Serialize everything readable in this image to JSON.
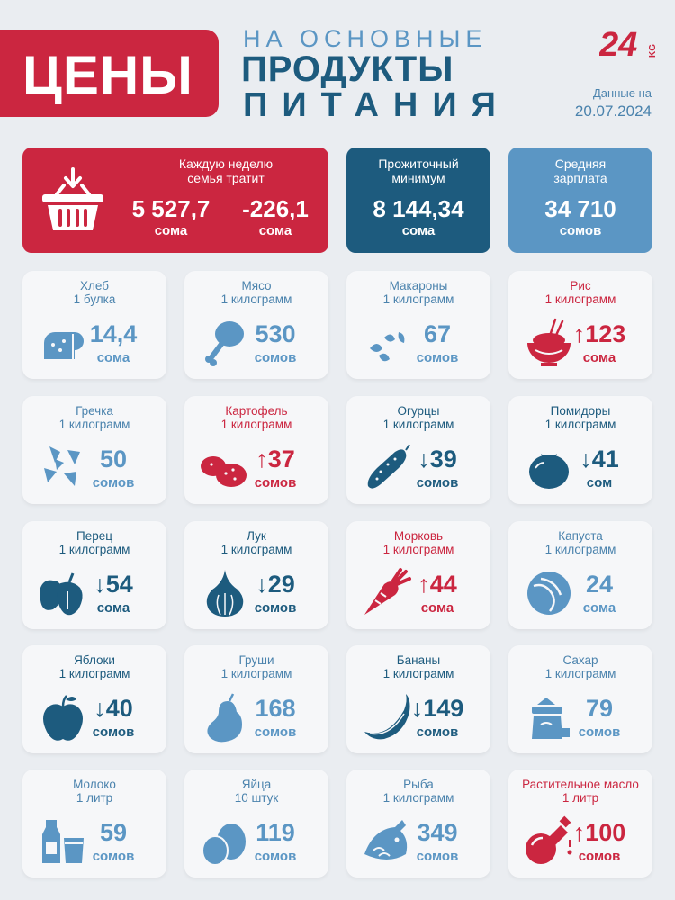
{
  "header": {
    "title": "ЦЕНЫ",
    "subtitle_1": "НА ОСНОВНЫЕ",
    "subtitle_2": "ПРОДУКТЫ",
    "subtitle_3": "ПИТАНИЯ",
    "logo_text": "24",
    "logo_suffix": "KG",
    "date_label": "Данные на",
    "date_value": "20.07.2024"
  },
  "colors": {
    "red": "#cb2640",
    "navy": "#1d5b7e",
    "blue": "#5b96c4",
    "background": "#eaedf1"
  },
  "stats": {
    "weekly": {
      "label_1": "Каждую неделю",
      "label_2": "семья тратит",
      "value": "5 527,7",
      "value_unit": "сома",
      "change": "-226,1",
      "change_unit": "сома",
      "icon": "basket-icon"
    },
    "minimum": {
      "label_1": "Прожиточный",
      "label_2": "минимум",
      "value": "8 144,34",
      "unit": "сома"
    },
    "salary": {
      "label_1": "Средняя",
      "label_2": "зарплата",
      "value": "34 710",
      "unit": "сомов"
    }
  },
  "products": [
    {
      "name": "Хлеб",
      "qty": "1 булка",
      "price": "14,4",
      "currency": "сома",
      "trend": "none",
      "icon": "bread-icon"
    },
    {
      "name": "Мясо",
      "qty": "1 килограмм",
      "price": "530",
      "currency": "сомов",
      "trend": "none",
      "icon": "meat-icon"
    },
    {
      "name": "Макароны",
      "qty": "1 килограмм",
      "price": "67",
      "currency": "сомов",
      "trend": "none",
      "icon": "pasta-icon"
    },
    {
      "name": "Рис",
      "qty": "1 килограмм",
      "price": "↑123",
      "currency": "сома",
      "trend": "up",
      "icon": "rice-icon"
    },
    {
      "name": "Гречка",
      "qty": "1 килограмм",
      "price": "50",
      "currency": "сомов",
      "trend": "none",
      "icon": "buckwheat-icon"
    },
    {
      "name": "Картофель",
      "qty": "1 килограмм",
      "price": "↑37",
      "currency": "сомов",
      "trend": "up",
      "icon": "potato-icon"
    },
    {
      "name": "Огурцы",
      "qty": "1 килограмм",
      "price": "↓39",
      "currency": "сомов",
      "trend": "down",
      "icon": "cucumber-icon"
    },
    {
      "name": "Помидоры",
      "qty": "1 килограмм",
      "price": "↓41",
      "currency": "сом",
      "trend": "down",
      "icon": "tomato-icon"
    },
    {
      "name": "Перец",
      "qty": "1 килограмм",
      "price": "↓54",
      "currency": "сома",
      "trend": "down",
      "icon": "pepper-icon"
    },
    {
      "name": "Лук",
      "qty": "1 килограмм",
      "price": "↓29",
      "currency": "сомов",
      "trend": "down",
      "icon": "onion-icon"
    },
    {
      "name": "Морковь",
      "qty": "1 килограмм",
      "price": "↑44",
      "currency": "сома",
      "trend": "up",
      "icon": "carrot-icon"
    },
    {
      "name": "Капуста",
      "qty": "1 килограмм",
      "price": "24",
      "currency": "сома",
      "trend": "none",
      "icon": "cabbage-icon"
    },
    {
      "name": "Яблоки",
      "qty": "1 килограмм",
      "price": "↓40",
      "currency": "сомов",
      "trend": "down",
      "icon": "apple-icon"
    },
    {
      "name": "Груши",
      "qty": "1 килограмм",
      "price": "168",
      "currency": "сомов",
      "trend": "none",
      "icon": "pear-icon"
    },
    {
      "name": "Бананы",
      "qty": "1 килограмм",
      "price": "↓149",
      "currency": "сомов",
      "trend": "down",
      "icon": "banana-icon"
    },
    {
      "name": "Сахар",
      "qty": "1 килограмм",
      "price": "79",
      "currency": "сомов",
      "trend": "none",
      "icon": "sugar-icon"
    },
    {
      "name": "Молоко",
      "qty": "1 литр",
      "price": "59",
      "currency": "сомов",
      "trend": "none",
      "icon": "milk-icon"
    },
    {
      "name": "Яйца",
      "qty": "10 штук",
      "price": "119",
      "currency": "сомов",
      "trend": "none",
      "icon": "eggs-icon"
    },
    {
      "name": "Рыба",
      "qty": "1 килограмм",
      "price": "349",
      "currency": "сомов",
      "trend": "none",
      "icon": "fish-icon"
    },
    {
      "name": "Растительное масло",
      "qty": "1 литр",
      "price": "↑100",
      "currency": "сомов",
      "trend": "up",
      "icon": "oil-icon"
    }
  ]
}
